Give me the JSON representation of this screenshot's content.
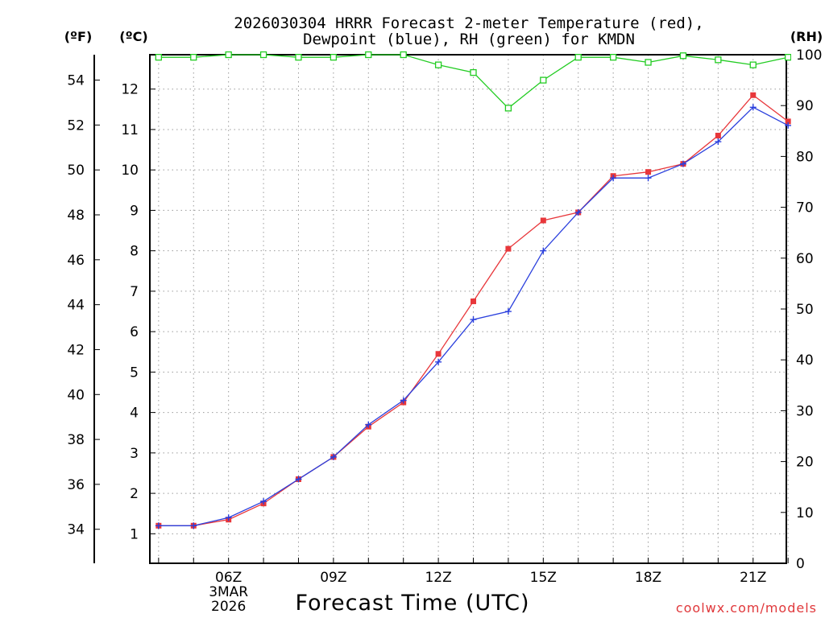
{
  "chart_data": {
    "type": "line",
    "title_line1": "2026030304 HRRR Forecast 2-meter Temperature (red),",
    "title_line2": "Dewpoint (blue), RH (green) for KMDN",
    "xlabel": "Forecast Time (UTC)",
    "unit_labels": {
      "f": "(ºF)",
      "c": "(ºC)",
      "rh": "(RH)"
    },
    "credit": "coolwx.com/models",
    "x_hours": [
      4,
      5,
      6,
      7,
      8,
      9,
      10,
      11,
      12,
      13,
      14,
      15,
      16,
      17,
      18,
      19,
      20,
      21,
      22
    ],
    "x_range": [
      3.75,
      21.95
    ],
    "x_ticks": [
      {
        "hour": 6,
        "lines": [
          "06Z",
          "3MAR",
          "2026"
        ]
      },
      {
        "hour": 9,
        "lines": [
          "09Z"
        ]
      },
      {
        "hour": 12,
        "lines": [
          "12Z"
        ]
      },
      {
        "hour": 15,
        "lines": [
          "15Z"
        ]
      },
      {
        "hour": 18,
        "lines": [
          "18Z"
        ]
      },
      {
        "hour": 21,
        "lines": [
          "21Z"
        ]
      }
    ],
    "y_celsius": {
      "range": [
        0.27,
        12.85
      ],
      "ticks": [
        1,
        2,
        3,
        4,
        5,
        6,
        7,
        8,
        9,
        10,
        11,
        12
      ]
    },
    "y_fahrenheit_ticks": [
      34,
      36,
      38,
      40,
      42,
      44,
      46,
      48,
      50,
      52,
      54
    ],
    "y_rh": {
      "range": [
        0,
        100
      ],
      "ticks": [
        0,
        10,
        20,
        30,
        40,
        50,
        60,
        70,
        80,
        90,
        100
      ]
    },
    "series": [
      {
        "name": "Temperature",
        "unit": "°C",
        "color": "#e8373b",
        "marker": "filled-square",
        "values": [
          1.2,
          1.2,
          1.35,
          1.75,
          2.35,
          2.9,
          3.65,
          4.25,
          5.45,
          6.75,
          8.05,
          8.75,
          8.95,
          9.85,
          9.95,
          10.15,
          10.85,
          11.85,
          11.2
        ]
      },
      {
        "name": "Dewpoint",
        "unit": "°C",
        "color": "#2a3fdd",
        "marker": "plus",
        "values": [
          1.2,
          1.2,
          1.4,
          1.8,
          2.35,
          2.9,
          3.7,
          4.3,
          5.25,
          6.3,
          6.5,
          8.0,
          8.95,
          9.8,
          9.8,
          10.15,
          10.7,
          11.55,
          11.1
        ]
      },
      {
        "name": "RH",
        "unit": "%",
        "color": "#22cc22",
        "marker": "open-square",
        "values": [
          99.5,
          99.5,
          100,
          100,
          99.5,
          99.5,
          100,
          100,
          98,
          96.5,
          89.5,
          95,
          99.5,
          99.5,
          98.5,
          99.8,
          99,
          98,
          99.5
        ]
      }
    ]
  }
}
